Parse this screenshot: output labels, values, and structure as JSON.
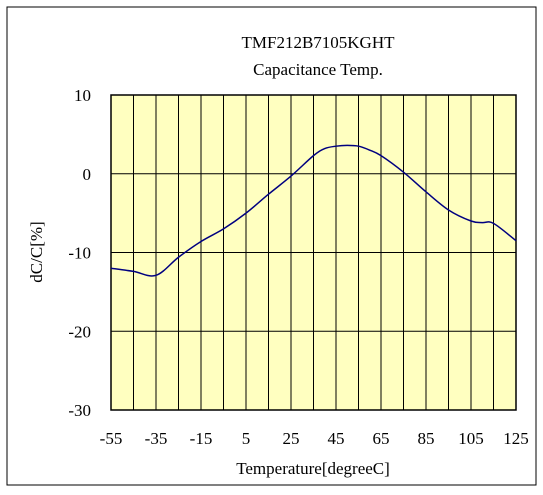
{
  "chart_data": {
    "type": "line",
    "title": "TMF212B7105KGHT",
    "subtitle": "Capacitance Temp.",
    "xlabel": "Temperature[degreeC]",
    "ylabel": "dC/C[%]",
    "xlim": [
      -55,
      125
    ],
    "ylim": [
      -30,
      10
    ],
    "x_ticks": [
      -55,
      -35,
      -15,
      5,
      25,
      45,
      65,
      85,
      105,
      125
    ],
    "y_ticks": [
      -30,
      -20,
      -10,
      0,
      10
    ],
    "x_tick_labels": [
      "-55",
      "-35",
      "-15",
      "5",
      "25",
      "45",
      "65",
      "85",
      "105",
      "125"
    ],
    "y_tick_labels": [
      "-30",
      "-20",
      "-10",
      "0",
      "10"
    ],
    "vertical_gridlines_every": 10,
    "grid": true,
    "plot_background": "#ffffc0",
    "line_color": "#000080",
    "series": [
      {
        "x": [
          -55,
          -45,
          -35,
          -25,
          -15,
          -5,
          5,
          15,
          25,
          35,
          40,
          45,
          50,
          55,
          60,
          65,
          75,
          85,
          95,
          105,
          110,
          115,
          125
        ],
        "y": [
          -12.0,
          -12.4,
          -12.9,
          -10.6,
          -8.6,
          -7.0,
          -5.0,
          -2.6,
          -0.3,
          2.3,
          3.2,
          3.5,
          3.6,
          3.5,
          3.0,
          2.3,
          0.2,
          -2.3,
          -4.6,
          -6.0,
          -6.2,
          -6.3,
          -8.5
        ]
      }
    ]
  }
}
